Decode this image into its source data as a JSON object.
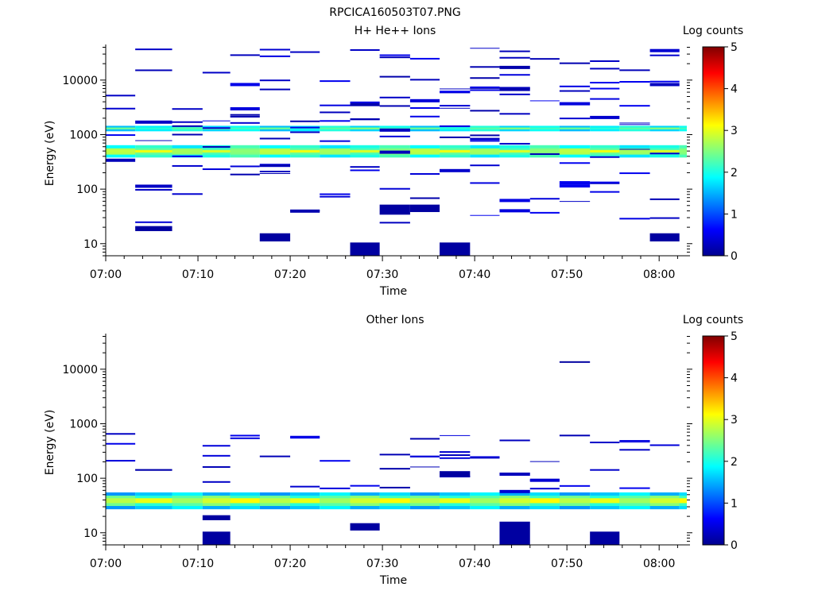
{
  "figure": {
    "title": "RPCICA160503T07.PNG"
  },
  "chart_data": [
    {
      "type": "heatmap",
      "title": "H+ He++ Ions",
      "xlabel": "Time",
      "ylabel": "Energy (eV)",
      "x_ticks": [
        "07:00",
        "07:10",
        "07:20",
        "07:30",
        "07:40",
        "07:50",
        "08:00"
      ],
      "y_ticks": [
        "10",
        "100",
        "1000",
        "10000"
      ],
      "y_scale": "log",
      "x_range_minutes": [
        0,
        63
      ],
      "y_range_ev": [
        6,
        45000
      ],
      "colorbar": {
        "label": "Log counts",
        "ticks": [
          "0",
          "1",
          "2",
          "3",
          "4",
          "5"
        ],
        "range": [
          0,
          5
        ]
      },
      "time_columns_minutes": [
        0,
        3.2,
        7.2,
        10.5,
        13.5,
        16.7,
        20,
        23.2,
        26.5,
        29.7,
        33,
        36.2,
        39.5,
        42.7,
        46,
        49.2,
        52.5,
        55.7,
        59,
        62.2
      ],
      "bands": [
        {
          "emin": 1150,
          "emax": 1450,
          "value": 1.8
        },
        {
          "emin": 1250,
          "emax": 1350,
          "value": 2.3
        },
        {
          "emin": 380,
          "emax": 640,
          "value": 2.0
        },
        {
          "emin": 430,
          "emax": 560,
          "value": 2.5
        },
        {
          "emin": 470,
          "emax": 520,
          "value": 2.8
        }
      ],
      "blocks": [
        {
          "t0": 26.5,
          "t1": 29.7,
          "emin": 6,
          "emax": 10.5,
          "value": 0.1
        },
        {
          "t0": 36.2,
          "t1": 39.5,
          "emin": 6,
          "emax": 10.5,
          "value": 0.1
        },
        {
          "t0": 16.7,
          "t1": 20,
          "emin": 11,
          "emax": 15.5,
          "value": 0.1
        },
        {
          "t0": 59,
          "t1": 62.2,
          "emin": 11,
          "emax": 15.5,
          "value": 0.1
        },
        {
          "t0": 3.2,
          "t1": 7.2,
          "emin": 17,
          "emax": 21,
          "value": 0.1
        },
        {
          "t0": 29.7,
          "t1": 33,
          "emin": 34,
          "emax": 52,
          "value": 0.1
        },
        {
          "t0": 33,
          "t1": 36.2,
          "emin": 38,
          "emax": 52,
          "value": 0.1
        }
      ],
      "sparse_seed": 11,
      "sparse_count": 150,
      "sparse_emin": 25,
      "sparse_emax": 40000
    },
    {
      "type": "heatmap",
      "title": "Other Ions",
      "xlabel": "Time",
      "ylabel": "Energy (eV)",
      "x_ticks": [
        "07:00",
        "07:10",
        "07:20",
        "07:30",
        "07:40",
        "07:50",
        "08:00"
      ],
      "y_ticks": [
        "10",
        "100",
        "1000",
        "10000"
      ],
      "y_scale": "log",
      "x_range_minutes": [
        0,
        63
      ],
      "y_range_ev": [
        6,
        45000
      ],
      "colorbar": {
        "label": "Log counts",
        "ticks": [
          "0",
          "1",
          "2",
          "3",
          "4",
          "5"
        ],
        "range": [
          0,
          5
        ]
      },
      "time_columns_minutes": [
        0,
        3.2,
        7.2,
        10.5,
        13.5,
        16.7,
        20,
        23.2,
        26.5,
        29.7,
        33,
        36.2,
        39.5,
        42.7,
        46,
        49.2,
        52.5,
        55.7,
        59,
        62.2
      ],
      "bands": [
        {
          "emin": 27,
          "emax": 55,
          "value": 1.6
        },
        {
          "emin": 31,
          "emax": 48,
          "value": 2.3
        },
        {
          "emin": 35,
          "emax": 43,
          "value": 2.9
        }
      ],
      "blocks": [
        {
          "t0": 10.5,
          "t1": 13.5,
          "emin": 6,
          "emax": 10.5,
          "value": 0.1
        },
        {
          "t0": 42.7,
          "t1": 46,
          "emin": 6,
          "emax": 16,
          "value": 0.1
        },
        {
          "t0": 52.5,
          "t1": 55.7,
          "emin": 6,
          "emax": 10.5,
          "value": 0.1
        },
        {
          "t0": 10.5,
          "t1": 13.5,
          "emin": 17,
          "emax": 21,
          "value": 0.1
        },
        {
          "t0": 26.5,
          "t1": 29.7,
          "emin": 11,
          "emax": 15,
          "value": 0.1
        },
        {
          "t0": 36.2,
          "t1": 39.5,
          "emin": 105,
          "emax": 135,
          "value": 0.1
        }
      ],
      "sparse_seed": 29,
      "sparse_count": 48,
      "sparse_emin": 60,
      "sparse_emax": 700,
      "sparse_extra": [
        {
          "t0": 49.2,
          "t1": 52.5,
          "e": 14000,
          "value": 0.1
        }
      ]
    }
  ]
}
